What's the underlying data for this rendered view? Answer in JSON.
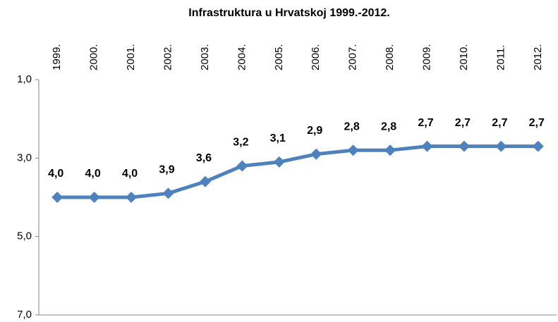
{
  "chart_data": {
    "type": "line",
    "title": "Infrastruktura u Hrvatskoj 1999.-2012.",
    "categories": [
      "1999.",
      "2000.",
      "2001.",
      "2002.",
      "2003.",
      "2004.",
      "2005.",
      "2006.",
      "2007.",
      "2008.",
      "2009.",
      "2010.",
      "2011.",
      "2012."
    ],
    "series": [
      {
        "name": "Infrastruktura",
        "color": "#4f81bd",
        "values": [
          4.0,
          4.0,
          4.0,
          3.9,
          3.6,
          3.2,
          3.1,
          2.9,
          2.8,
          2.8,
          2.7,
          2.7,
          2.7,
          2.7
        ],
        "value_labels": [
          "4,0",
          "4,0",
          "4,0",
          "3,9",
          "3,6",
          "3,2",
          "3,1",
          "2,9",
          "2,8",
          "2,8",
          "2,7",
          "2,7",
          "2,7",
          "2,7"
        ]
      }
    ],
    "ylim": [
      1.0,
      7.0
    ],
    "inverted": true,
    "yticks": [
      {
        "value": 1.0,
        "label": "1,0"
      },
      {
        "value": 3.0,
        "label": "3,0"
      },
      {
        "value": 5.0,
        "label": "5,0"
      },
      {
        "value": 7.0,
        "label": "7,0"
      }
    ],
    "grid": false,
    "legend": false
  }
}
